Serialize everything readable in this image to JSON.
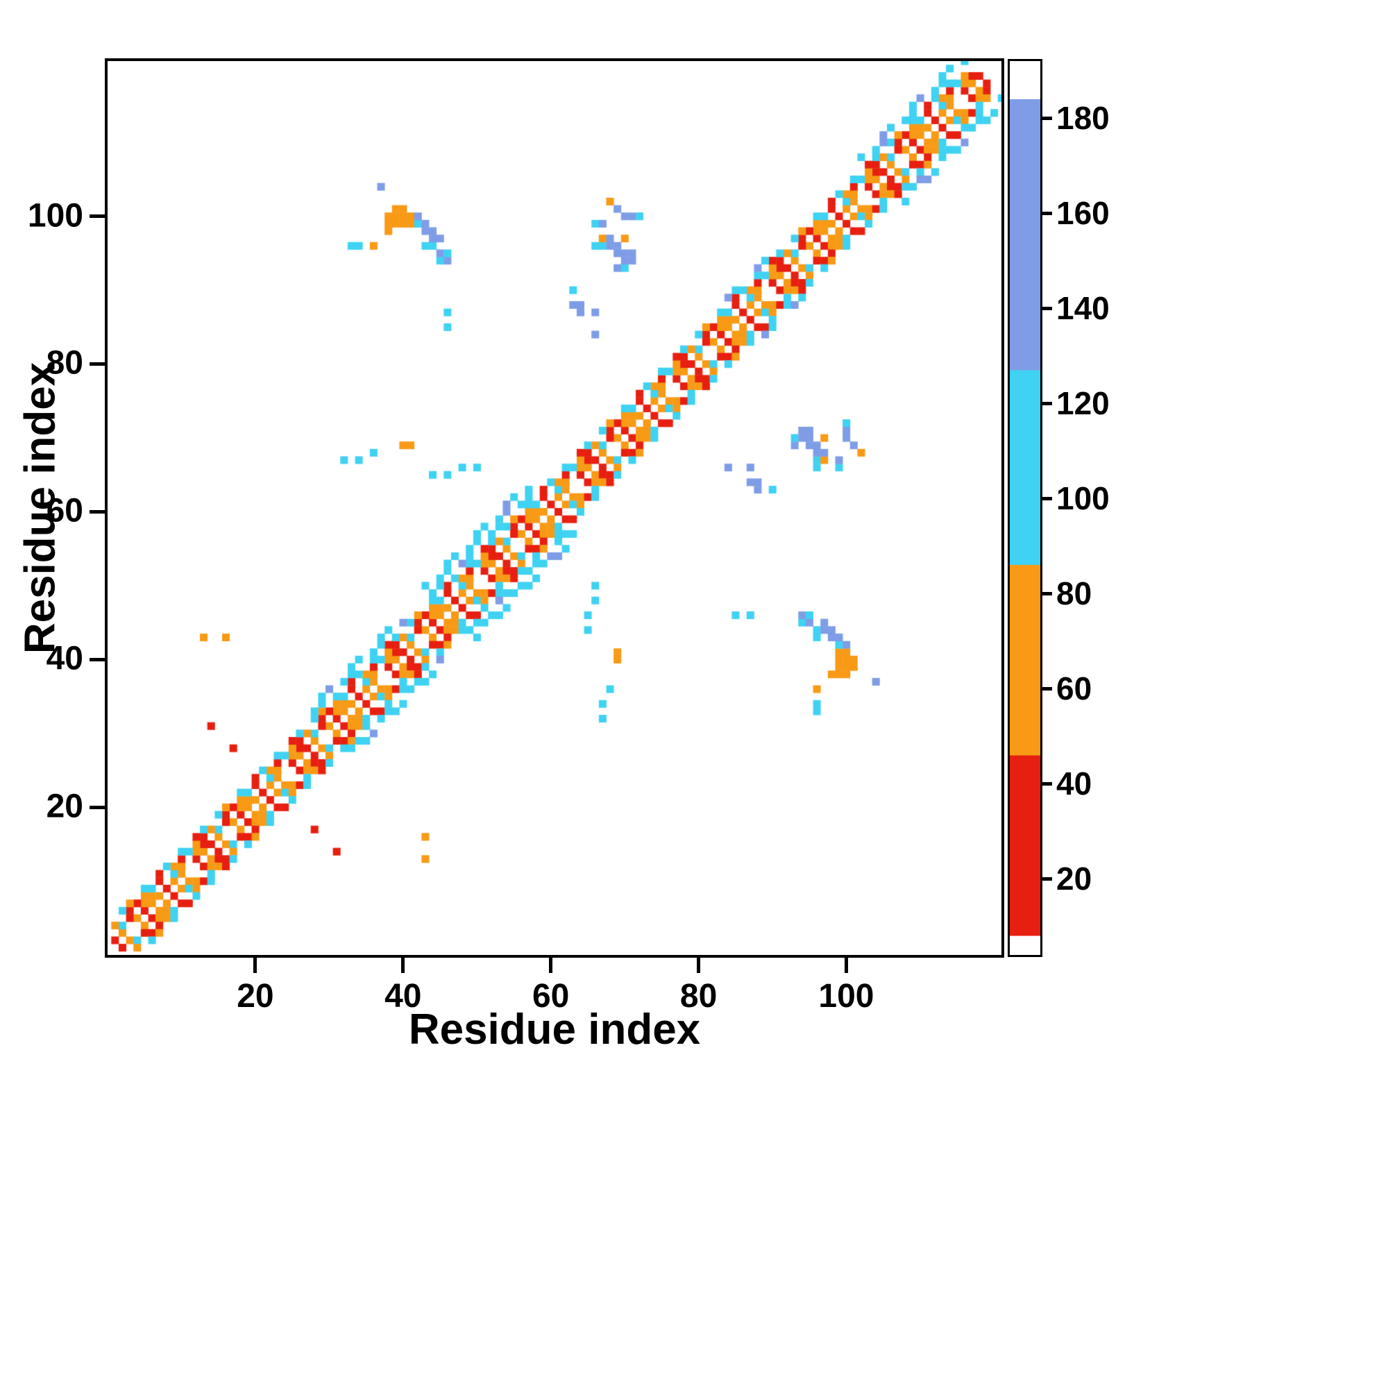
{
  "chart_data": {
    "type": "heatmap",
    "title": "",
    "xlabel": "Residue index",
    "ylabel": "Residue index",
    "x_range": [
      0,
      121
    ],
    "y_range": [
      0,
      121
    ],
    "x_ticks": [
      20,
      40,
      60,
      80,
      100
    ],
    "y_ticks": [
      20,
      40,
      60,
      80,
      100
    ],
    "grid": false,
    "symmetric": true,
    "colorbar": {
      "range": [
        4,
        192
      ],
      "ticks": [
        20,
        40,
        60,
        80,
        100,
        120,
        140,
        160,
        180
      ],
      "stops": [
        {
          "from": 4,
          "to": 8,
          "color": "#ffffff"
        },
        {
          "from": 8,
          "to": 46,
          "color": "#e71f10"
        },
        {
          "from": 46,
          "to": 86,
          "color": "#f89a15"
        },
        {
          "from": 86,
          "to": 127,
          "color": "#3fd2f2"
        },
        {
          "from": 127,
          "to": 184,
          "color": "#7f9de6"
        },
        {
          "from": 184,
          "to": 192,
          "color": "#ffffff"
        }
      ]
    },
    "value_legend": {
      "red": 30,
      "orange": 65,
      "cyan": 100,
      "blue": 150
    },
    "diagonal_band": {
      "range": [
        1,
        119
      ],
      "offsets": [
        {
          "offset": 1,
          "phase": 0,
          "pattern": [
            65,
            30,
            65,
            0,
            65,
            30,
            65,
            65,
            30,
            65,
            65,
            0,
            30
          ]
        },
        {
          "offset": 2,
          "phase": 5,
          "pattern": [
            0,
            100,
            65,
            0,
            65,
            30,
            0,
            100,
            30,
            0,
            65,
            65,
            0
          ]
        },
        {
          "offset": 3,
          "phase": 9,
          "pattern": [
            30,
            65,
            100,
            30,
            0,
            65,
            30,
            100,
            65,
            30,
            65,
            0,
            30
          ]
        },
        {
          "offset": 4,
          "phase": 3,
          "pattern": [
            100,
            0,
            30,
            100,
            0,
            100,
            65,
            0,
            100,
            0,
            30,
            100,
            0
          ]
        }
      ]
    },
    "halos": [
      {
        "from": 28,
        "to": 40,
        "offsets": [
          5,
          6
        ],
        "value": 100,
        "blue_every": 5
      },
      {
        "from": 43,
        "to": 57,
        "offsets": [
          5,
          6,
          7
        ],
        "value": 100,
        "blue_every": 6
      },
      {
        "from": 82,
        "to": 90,
        "offsets": [
          5
        ],
        "value": 100,
        "blue_every": 4
      },
      {
        "from": 102,
        "to": 116,
        "offsets": [
          5,
          6
        ],
        "value": 100,
        "blue_every": 5
      }
    ],
    "cells": [
      [
        33,
        96,
        100
      ],
      [
        34,
        96,
        100
      ],
      [
        36,
        96,
        65
      ],
      [
        37,
        104,
        150
      ],
      [
        38,
        98,
        65
      ],
      [
        38,
        99,
        70
      ],
      [
        38,
        100,
        70
      ],
      [
        39,
        99,
        72
      ],
      [
        39,
        100,
        75
      ],
      [
        39,
        101,
        65
      ],
      [
        40,
        99,
        70
      ],
      [
        40,
        100,
        70
      ],
      [
        40,
        101,
        65
      ],
      [
        41,
        99,
        65
      ],
      [
        41,
        100,
        70
      ],
      [
        42,
        99,
        100
      ],
      [
        42,
        100,
        140
      ],
      [
        43,
        96,
        100
      ],
      [
        43,
        98,
        150
      ],
      [
        43,
        99,
        140
      ],
      [
        44,
        96,
        100
      ],
      [
        44,
        97,
        150
      ],
      [
        44,
        98,
        140
      ],
      [
        45,
        94,
        100
      ],
      [
        45,
        95,
        140
      ],
      [
        45,
        97,
        140
      ],
      [
        46,
        94,
        140
      ],
      [
        46,
        95,
        100
      ],
      [
        66,
        96,
        100
      ],
      [
        66,
        99,
        100
      ],
      [
        67,
        96,
        100
      ],
      [
        67,
        97,
        65
      ],
      [
        67,
        99,
        140
      ],
      [
        68,
        96,
        150
      ],
      [
        68,
        97,
        140
      ],
      [
        68,
        102,
        65
      ],
      [
        69,
        93,
        140
      ],
      [
        69,
        95,
        150
      ],
      [
        69,
        96,
        140
      ],
      [
        69,
        101,
        140
      ],
      [
        70,
        93,
        100
      ],
      [
        70,
        94,
        150
      ],
      [
        70,
        95,
        140
      ],
      [
        70,
        97,
        65
      ],
      [
        70,
        100,
        140
      ],
      [
        71,
        94,
        140
      ],
      [
        71,
        95,
        140
      ],
      [
        71,
        100,
        140
      ],
      [
        72,
        100,
        100
      ],
      [
        63,
        88,
        140
      ],
      [
        63,
        90,
        100
      ],
      [
        64,
        87,
        140
      ],
      [
        64,
        88,
        150
      ],
      [
        66,
        84,
        150
      ],
      [
        66,
        87,
        140
      ],
      [
        14,
        31,
        30
      ],
      [
        17,
        28,
        30
      ],
      [
        13,
        43,
        65
      ],
      [
        16,
        43,
        65
      ],
      [
        32,
        67,
        100
      ],
      [
        34,
        67,
        100
      ],
      [
        36,
        68,
        100
      ],
      [
        40,
        69,
        70
      ],
      [
        41,
        69,
        70
      ],
      [
        44,
        65,
        100
      ],
      [
        46,
        65,
        100
      ],
      [
        48,
        66,
        100
      ],
      [
        50,
        66,
        100
      ],
      [
        46,
        85,
        100
      ],
      [
        46,
        87,
        100
      ]
    ]
  }
}
